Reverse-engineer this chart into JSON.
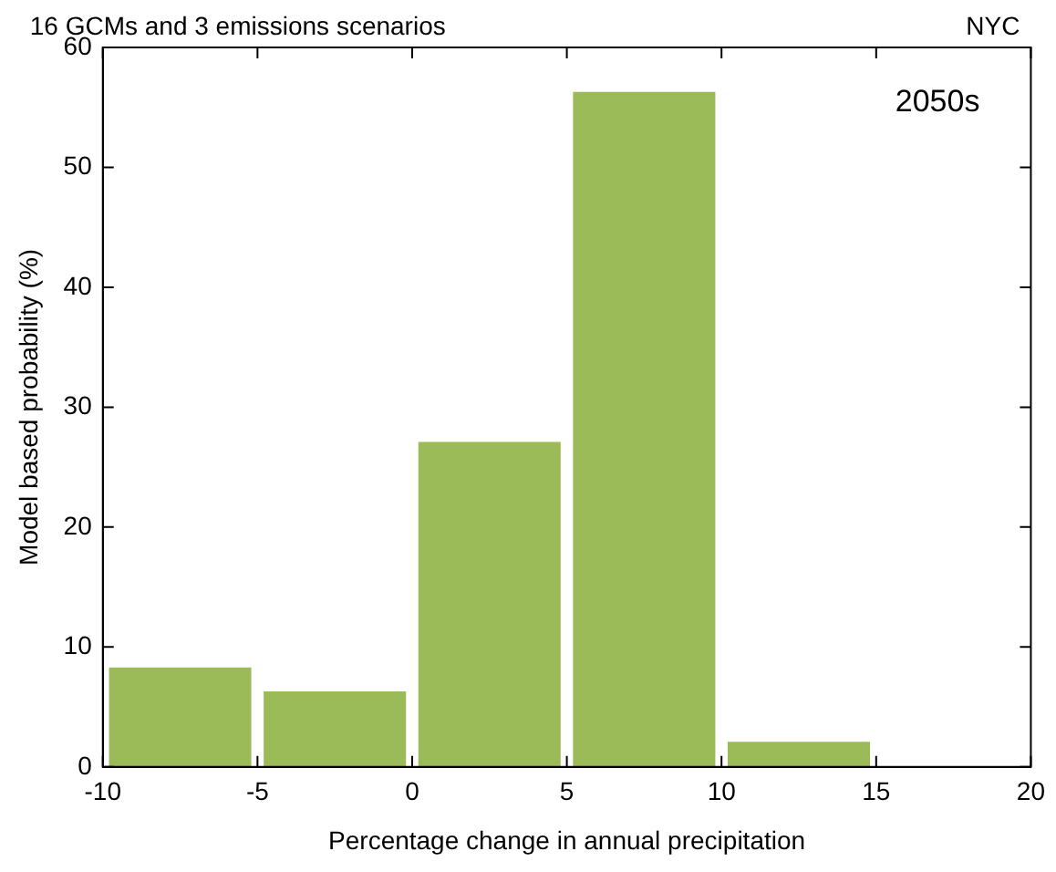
{
  "chart_data": {
    "type": "histogram",
    "title": "16 GCMs and 3 emissions scenarios",
    "annotations": [
      "NYC",
      "2050s"
    ],
    "xlabel": "Percentage change in annual precipitation",
    "ylabel": "Model based probability (%)",
    "bins": [
      -10,
      -5,
      0,
      5,
      10,
      15,
      20
    ],
    "values": [
      8.3,
      6.3,
      27.1,
      56.3,
      2.1,
      0
    ],
    "color": "#9bbb59",
    "xlim": [
      -10,
      20
    ],
    "xticks": [
      -10,
      -5,
      0,
      5,
      10,
      15,
      20
    ],
    "ylim": [
      0,
      60
    ],
    "yticks": [
      0,
      10,
      20,
      30,
      40,
      50,
      60
    ],
    "grid": false,
    "legend": false
  }
}
